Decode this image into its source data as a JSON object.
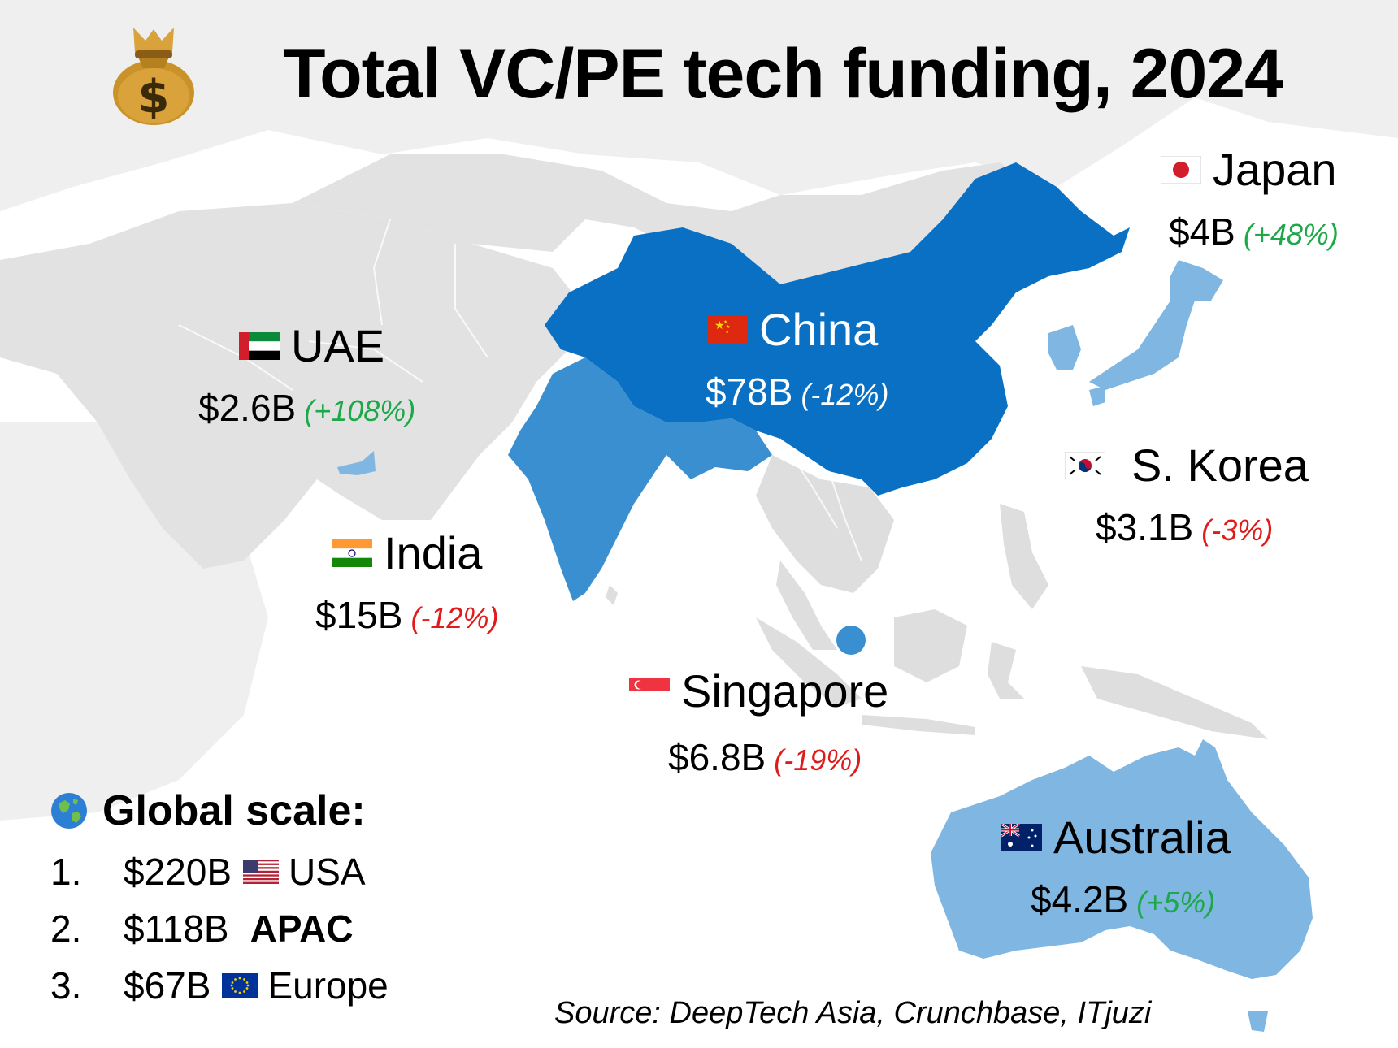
{
  "title": "Total VC/PE tech funding, 2024",
  "colors": {
    "background_land": "#e3e3e3",
    "china": "#0a70c4",
    "india": "#3a8fd0",
    "light_blue": "#7fb6e2",
    "positive": "#1ea84a",
    "negative": "#e01b1b"
  },
  "icons": {
    "title_icon": "money-bag-icon",
    "global_icon": "globe-icon"
  },
  "countries": {
    "japan": {
      "name": "Japan",
      "value": "$4B",
      "change": "(+48%)",
      "trend": "up"
    },
    "uae": {
      "name": "UAE",
      "value": "$2.6B",
      "change": "(+108%)",
      "trend": "up"
    },
    "china": {
      "name": "China",
      "value": "$78B",
      "change": "(-12%)",
      "trend": "down"
    },
    "skorea": {
      "name": "S. Korea",
      "value": "$3.1B",
      "change": "(-3%)",
      "trend": "down"
    },
    "india": {
      "name": "India",
      "value": "$15B",
      "change": "(-12%)",
      "trend": "down"
    },
    "singapore": {
      "name": "Singapore",
      "value": "$6.8B",
      "change": "(-19%)",
      "trend": "down"
    },
    "australia": {
      "name": "Australia",
      "value": "$4.2B",
      "change": "(+5%)",
      "trend": "up"
    }
  },
  "global_scale": {
    "heading": "Global scale:",
    "items": [
      {
        "rank": "1.",
        "amount": "$220B",
        "region": "USA",
        "flag": "usa-flag-icon"
      },
      {
        "rank": "2.",
        "amount": "$118B",
        "region": "APAC",
        "flag": ""
      },
      {
        "rank": "3.",
        "amount": "$67B",
        "region": "Europe",
        "flag": "eu-flag-icon"
      }
    ]
  },
  "source": "Source: DeepTech Asia, Crunchbase, ITjuzi"
}
